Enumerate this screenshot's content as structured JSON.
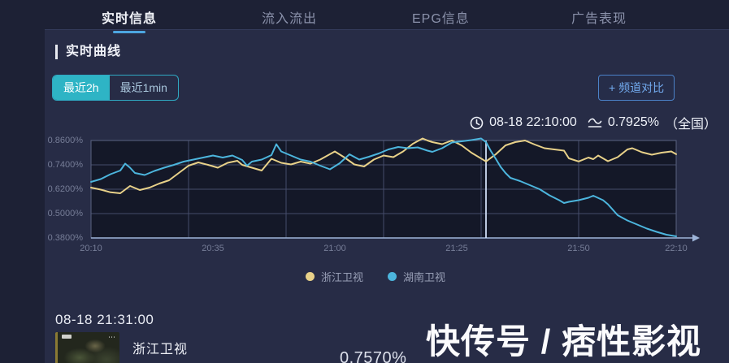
{
  "nav": {
    "tabs": [
      {
        "label": "实时信息",
        "active": true
      },
      {
        "label": "流入流出",
        "active": false
      },
      {
        "label": "EPG信息",
        "active": false
      },
      {
        "label": "广告表现",
        "active": false
      }
    ]
  },
  "section": {
    "title": "实时曲线"
  },
  "range_toggle": {
    "options": [
      {
        "label": "最近2h",
        "active": true
      },
      {
        "label": "最近1min",
        "active": false
      }
    ]
  },
  "compare": {
    "plus": "+",
    "label": "频道对比"
  },
  "crosshair": {
    "time": "08-18 22:10:00",
    "value": "0.7925%",
    "region": "（全国）"
  },
  "chart_data": {
    "type": "line",
    "title": "实时曲线",
    "xlabel": "",
    "ylabel": "",
    "ylim": [
      0.38,
      0.86
    ],
    "x_range_minutes": [
      0,
      120
    ],
    "x_start_time": "20:10",
    "grid": true,
    "legend_position": "bottom",
    "marker_minute": 81,
    "marker_time": "21:31",
    "y_ticks": [
      {
        "v": 0.86,
        "label": "0.8600%"
      },
      {
        "v": 0.74,
        "label": "0.7400%"
      },
      {
        "v": 0.62,
        "label": "0.6200%"
      },
      {
        "v": 0.5,
        "label": "0.5000%"
      },
      {
        "v": 0.38,
        "label": "0.3800%"
      }
    ],
    "x_ticks": [
      {
        "t": 0,
        "label": "20:10"
      },
      {
        "t": 25,
        "label": "20:35"
      },
      {
        "t": 50,
        "label": "21:00"
      },
      {
        "t": 75,
        "label": "21:25"
      },
      {
        "t": 100,
        "label": "21:50"
      },
      {
        "t": 120,
        "label": "22:10"
      }
    ],
    "x_gridline_minutes": [
      0,
      20,
      40,
      60,
      80,
      100,
      120
    ],
    "series": [
      {
        "name": "浙江卫视",
        "color": "#e8d189",
        "points": [
          [
            0,
            0.628
          ],
          [
            2,
            0.618
          ],
          [
            4,
            0.605
          ],
          [
            6,
            0.6
          ],
          [
            8,
            0.636
          ],
          [
            10,
            0.616
          ],
          [
            12,
            0.628
          ],
          [
            14,
            0.648
          ],
          [
            16,
            0.664
          ],
          [
            18,
            0.7
          ],
          [
            20,
            0.736
          ],
          [
            22,
            0.752
          ],
          [
            24,
            0.74
          ],
          [
            26,
            0.726
          ],
          [
            28,
            0.75
          ],
          [
            30,
            0.76
          ],
          [
            31,
            0.74
          ],
          [
            33,
            0.726
          ],
          [
            35,
            0.712
          ],
          [
            37,
            0.77
          ],
          [
            39,
            0.75
          ],
          [
            41,
            0.742
          ],
          [
            43,
            0.756
          ],
          [
            45,
            0.746
          ],
          [
            47,
            0.766
          ],
          [
            50,
            0.806
          ],
          [
            52,
            0.776
          ],
          [
            54,
            0.742
          ],
          [
            56,
            0.732
          ],
          [
            58,
            0.766
          ],
          [
            60,
            0.786
          ],
          [
            62,
            0.778
          ],
          [
            64,
            0.806
          ],
          [
            66,
            0.844
          ],
          [
            68,
            0.87
          ],
          [
            69,
            0.86
          ],
          [
            70,
            0.852
          ],
          [
            72,
            0.842
          ],
          [
            74,
            0.86
          ],
          [
            75,
            0.848
          ],
          [
            76,
            0.836
          ],
          [
            78,
            0.8
          ],
          [
            81,
            0.757
          ],
          [
            83,
            0.792
          ],
          [
            85,
            0.836
          ],
          [
            87,
            0.852
          ],
          [
            89,
            0.86
          ],
          [
            91,
            0.84
          ],
          [
            93,
            0.822
          ],
          [
            95,
            0.816
          ],
          [
            97,
            0.81
          ],
          [
            98,
            0.772
          ],
          [
            100,
            0.757
          ],
          [
            102,
            0.776
          ],
          [
            103,
            0.768
          ],
          [
            104,
            0.786
          ],
          [
            106,
            0.758
          ],
          [
            108,
            0.778
          ],
          [
            110,
            0.816
          ],
          [
            111,
            0.822
          ],
          [
            113,
            0.802
          ],
          [
            115,
            0.79
          ],
          [
            117,
            0.8
          ],
          [
            119,
            0.806
          ],
          [
            120,
            0.7925
          ]
        ]
      },
      {
        "name": "湖南卫视",
        "color": "#4cb5dd",
        "points": [
          [
            0,
            0.656
          ],
          [
            2,
            0.67
          ],
          [
            4,
            0.694
          ],
          [
            6,
            0.712
          ],
          [
            7,
            0.746
          ],
          [
            8,
            0.726
          ],
          [
            9,
            0.7
          ],
          [
            11,
            0.69
          ],
          [
            13,
            0.71
          ],
          [
            15,
            0.726
          ],
          [
            17,
            0.74
          ],
          [
            19,
            0.756
          ],
          [
            21,
            0.766
          ],
          [
            23,
            0.776
          ],
          [
            25,
            0.786
          ],
          [
            27,
            0.776
          ],
          [
            29,
            0.786
          ],
          [
            31,
            0.764
          ],
          [
            32,
            0.736
          ],
          [
            33,
            0.756
          ],
          [
            35,
            0.766
          ],
          [
            37,
            0.788
          ],
          [
            38,
            0.842
          ],
          [
            39,
            0.806
          ],
          [
            41,
            0.786
          ],
          [
            43,
            0.766
          ],
          [
            45,
            0.756
          ],
          [
            47,
            0.736
          ],
          [
            49,
            0.718
          ],
          [
            51,
            0.748
          ],
          [
            53,
            0.792
          ],
          [
            55,
            0.766
          ],
          [
            57,
            0.78
          ],
          [
            59,
            0.796
          ],
          [
            61,
            0.816
          ],
          [
            63,
            0.828
          ],
          [
            65,
            0.822
          ],
          [
            67,
            0.826
          ],
          [
            69,
            0.81
          ],
          [
            70,
            0.804
          ],
          [
            72,
            0.822
          ],
          [
            74,
            0.85
          ],
          [
            76,
            0.856
          ],
          [
            78,
            0.862
          ],
          [
            80,
            0.87
          ],
          [
            81,
            0.852
          ],
          [
            82,
            0.808
          ],
          [
            83,
            0.77
          ],
          [
            84,
            0.73
          ],
          [
            85,
            0.7
          ],
          [
            86,
            0.676
          ],
          [
            88,
            0.66
          ],
          [
            90,
            0.64
          ],
          [
            92,
            0.62
          ],
          [
            94,
            0.59
          ],
          [
            96,
            0.566
          ],
          [
            97,
            0.552
          ],
          [
            98,
            0.558
          ],
          [
            100,
            0.566
          ],
          [
            102,
            0.578
          ],
          [
            103,
            0.588
          ],
          [
            105,
            0.566
          ],
          [
            106,
            0.546
          ],
          [
            108,
            0.492
          ],
          [
            110,
            0.466
          ],
          [
            112,
            0.446
          ],
          [
            114,
            0.426
          ],
          [
            116,
            0.41
          ],
          [
            118,
            0.396
          ],
          [
            120,
            0.388
          ]
        ]
      }
    ]
  },
  "detail": {
    "time": "08-18 21:31:00",
    "channel": "浙江卫视",
    "value": "0.7570%"
  },
  "watermark": {
    "text": "快传号 / 痞性影视"
  },
  "colors": {
    "page_bg": "#1d2135",
    "panel_bg": "#272c46",
    "accent_teal": "#2eb4c5",
    "accent_blue": "#4da6e0",
    "series_yellow": "#e8d189",
    "series_blue": "#4cb5dd",
    "grid": "#454c6a",
    "axis": "#9db4d8",
    "marker": "#d9e7ff"
  }
}
